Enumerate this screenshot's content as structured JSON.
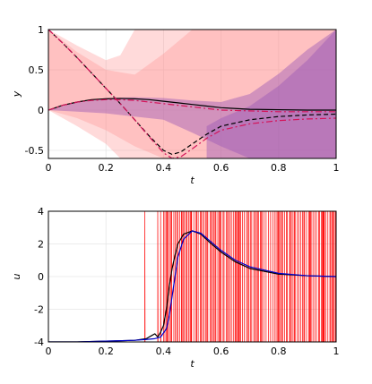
{
  "chart_data": [
    {
      "type": "line",
      "xlabel": "t",
      "ylabel": "y",
      "xlim": [
        0,
        1
      ],
      "ylim": [
        -0.6,
        1.0
      ],
      "xticks": [
        "0",
        "0.2",
        "0.4",
        "0.6",
        "0.8",
        "1"
      ],
      "yticks": [
        "-0.5",
        "0",
        "0.5",
        "1"
      ],
      "grid": true,
      "series": [
        {
          "color": "#000000",
          "dash": "solid",
          "x": [
            0,
            0.05,
            0.1,
            0.15,
            0.2,
            0.25,
            0.3,
            0.35,
            0.4,
            0.45,
            0.5,
            0.55,
            0.6,
            0.7,
            0.8,
            0.9,
            1.0
          ],
          "y": [
            0.0,
            0.06,
            0.1,
            0.13,
            0.14,
            0.145,
            0.14,
            0.13,
            0.11,
            0.09,
            0.07,
            0.05,
            0.03,
            0.01,
            0.005,
            0.0,
            0.0
          ]
        },
        {
          "color": "#000000",
          "dash": "dashed",
          "x": [
            0,
            0.05,
            0.1,
            0.15,
            0.2,
            0.25,
            0.3,
            0.35,
            0.4,
            0.43,
            0.46,
            0.5,
            0.55,
            0.6,
            0.7,
            0.8,
            0.9,
            1.0
          ],
          "y": [
            1.0,
            0.83,
            0.65,
            0.46,
            0.27,
            0.08,
            -0.12,
            -0.32,
            -0.5,
            -0.55,
            -0.52,
            -0.42,
            -0.3,
            -0.2,
            -0.12,
            -0.08,
            -0.06,
            -0.05
          ]
        },
        {
          "color": "#d4145a",
          "dash": "dashdot",
          "x": [
            0,
            0.05,
            0.1,
            0.15,
            0.2,
            0.25,
            0.3,
            0.35,
            0.4,
            0.45,
            0.5,
            0.55,
            0.6,
            0.7,
            0.8,
            0.9,
            1.0
          ],
          "y": [
            0.0,
            0.06,
            0.1,
            0.12,
            0.13,
            0.13,
            0.12,
            0.1,
            0.08,
            0.06,
            0.04,
            0.02,
            0.0,
            -0.01,
            -0.02,
            -0.02,
            -0.02
          ]
        },
        {
          "color": "#d4145a",
          "dash": "dashdot",
          "x": [
            0,
            0.05,
            0.1,
            0.15,
            0.2,
            0.25,
            0.3,
            0.35,
            0.4,
            0.43,
            0.46,
            0.5,
            0.55,
            0.6,
            0.7,
            0.8,
            0.9,
            1.0
          ],
          "y": [
            1.0,
            0.83,
            0.65,
            0.46,
            0.27,
            0.08,
            -0.12,
            -0.33,
            -0.53,
            -0.6,
            -0.58,
            -0.48,
            -0.35,
            -0.25,
            -0.17,
            -0.13,
            -0.11,
            -0.1
          ]
        }
      ],
      "bands": [
        {
          "color": "#ff8c8c",
          "opacity": 0.32,
          "x": [
            0,
            0.1,
            0.2,
            0.25,
            0.3,
            0.4,
            0.5,
            0.6,
            0.7,
            0.8,
            0.9,
            1.0
          ],
          "upper": [
            1.0,
            0.8,
            0.62,
            0.68,
            1.0,
            1.0,
            1.0,
            1.0,
            1.0,
            1.0,
            1.0,
            1.0
          ],
          "lower": [
            0.0,
            -0.2,
            -0.42,
            -0.6,
            -0.6,
            -0.6,
            -0.6,
            -0.6,
            -0.6,
            -0.6,
            -0.6,
            -0.6
          ]
        },
        {
          "color": "#ff8c8c",
          "opacity": 0.32,
          "x": [
            0,
            0.1,
            0.2,
            0.3,
            0.4,
            0.5,
            0.6,
            0.7,
            0.8,
            0.9,
            1.0
          ],
          "upper": [
            1.0,
            0.72,
            0.5,
            0.44,
            0.7,
            1.0,
            1.0,
            1.0,
            1.0,
            1.0,
            1.0
          ],
          "lower": [
            0.0,
            -0.1,
            -0.25,
            -0.45,
            -0.6,
            -0.6,
            -0.6,
            -0.6,
            -0.6,
            -0.6,
            -0.6
          ]
        },
        {
          "color": "#9b59b6",
          "opacity": 0.45,
          "x": [
            0,
            0.1,
            0.2,
            0.3,
            0.4,
            0.5,
            0.6,
            0.7,
            0.8,
            0.9,
            1.0
          ],
          "upper": [
            0.0,
            0.1,
            0.15,
            0.16,
            0.15,
            0.12,
            0.1,
            0.2,
            0.45,
            0.75,
            1.0
          ],
          "lower": [
            0.0,
            -0.02,
            -0.04,
            -0.08,
            -0.12,
            -0.28,
            -0.45,
            -0.6,
            -0.6,
            -0.6,
            -0.6
          ]
        },
        {
          "color": "#9b59b6",
          "opacity": 0.45,
          "x": [
            0.55,
            0.6,
            0.7,
            0.8,
            0.9,
            1.0
          ],
          "upper": [
            -0.2,
            -0.1,
            0.05,
            0.3,
            0.62,
            1.0
          ],
          "lower": [
            -0.6,
            -0.6,
            -0.6,
            -0.6,
            -0.6,
            -0.6
          ]
        }
      ]
    },
    {
      "type": "line",
      "xlabel": "t",
      "ylabel": "u",
      "xlim": [
        0,
        1
      ],
      "ylim": [
        -4,
        4
      ],
      "xticks": [
        "0",
        "0.2",
        "0.4",
        "0.6",
        "0.8",
        "1"
      ],
      "yticks": [
        "-4",
        "-2",
        "0",
        "2",
        "4"
      ],
      "grid": true,
      "noise": {
        "color": "#ff0000",
        "start": 0.335,
        "dense_start": 0.4,
        "low": -4,
        "high": 4
      },
      "series": [
        {
          "color": "#000000",
          "dash": "solid",
          "x": [
            0,
            0.1,
            0.2,
            0.3,
            0.34,
            0.36,
            0.37,
            0.38,
            0.39,
            0.4,
            0.41,
            0.42,
            0.43,
            0.44,
            0.45,
            0.47,
            0.5,
            0.53,
            0.56,
            0.6,
            0.65,
            0.7,
            0.8,
            0.9,
            1.0
          ],
          "y": [
            -4,
            -4,
            -3.95,
            -3.9,
            -3.8,
            -3.6,
            -3.5,
            -3.7,
            -3.4,
            -3.0,
            -2.0,
            -0.6,
            0.5,
            1.3,
            2.0,
            2.6,
            2.8,
            2.6,
            2.1,
            1.5,
            0.9,
            0.5,
            0.15,
            0.05,
            0.0
          ]
        },
        {
          "color": "#0000cc",
          "dash": "solid",
          "x": [
            0,
            0.1,
            0.2,
            0.3,
            0.34,
            0.37,
            0.39,
            0.41,
            0.42,
            0.43,
            0.44,
            0.45,
            0.47,
            0.5,
            0.53,
            0.56,
            0.6,
            0.65,
            0.7,
            0.8,
            0.9,
            1.0
          ],
          "y": [
            -4,
            -4,
            -3.95,
            -3.9,
            -3.85,
            -3.8,
            -3.7,
            -3.2,
            -2.4,
            -1.2,
            0.0,
            1.2,
            2.3,
            2.8,
            2.65,
            2.2,
            1.6,
            1.0,
            0.6,
            0.2,
            0.05,
            0.0
          ]
        }
      ]
    }
  ]
}
